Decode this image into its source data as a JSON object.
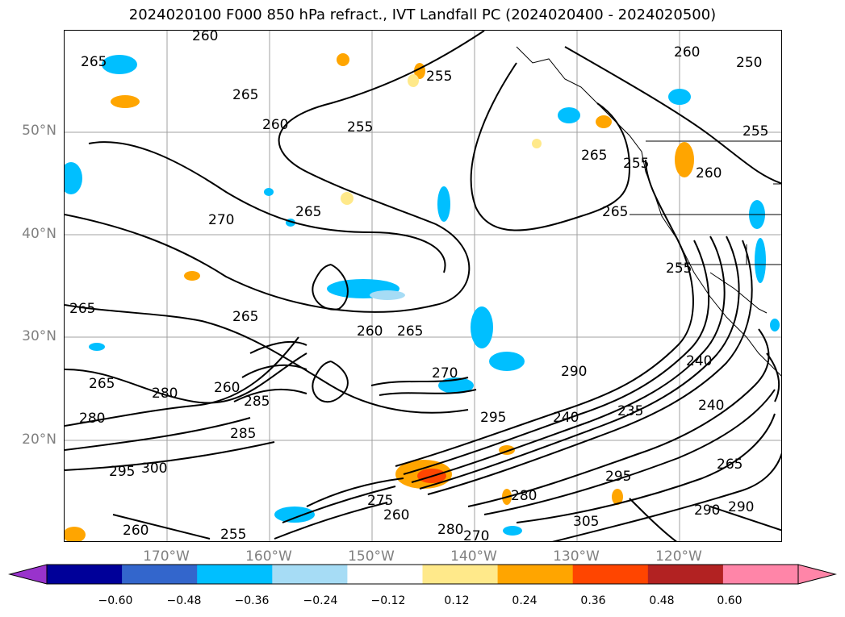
{
  "title": "2024020100 F000 850 hPa refract., IVT Landfall PC (2024020400 - 2024020500)",
  "map": {
    "lat_labels": [
      "50°N",
      "40°N",
      "30°N",
      "20°N"
    ],
    "lon_labels": [
      "170°W",
      "160°W",
      "150°W",
      "140°W",
      "130°W",
      "120°W"
    ],
    "contour_labels": [
      "260",
      "265",
      "265",
      "260",
      "255",
      "255",
      "260",
      "250",
      "255",
      "265",
      "260",
      "255",
      "265",
      "270",
      "265",
      "265",
      "260",
      "265",
      "265",
      "265",
      "260",
      "255",
      "240",
      "280",
      "285",
      "280",
      "285",
      "295",
      "300",
      "290",
      "295",
      "240",
      "235",
      "240",
      "265",
      "275",
      "280",
      "295",
      "305",
      "290",
      "290",
      "260",
      "255",
      "260",
      "270",
      "280",
      "270"
    ]
  },
  "colorbar": {
    "ticks": [
      "−0.60",
      "−0.48",
      "−0.36",
      "−0.24",
      "−0.12",
      "0.12",
      "0.24",
      "0.36",
      "0.48",
      "0.60"
    ],
    "colors": [
      "#9933cc",
      "#000099",
      "#3366cc",
      "#00bfff",
      "#a6dcf5",
      "#ffffff",
      "#ffe98a",
      "#ffa500",
      "#ff4500",
      "#b22222",
      "#ff85a8",
      "#ff85a8"
    ]
  }
}
